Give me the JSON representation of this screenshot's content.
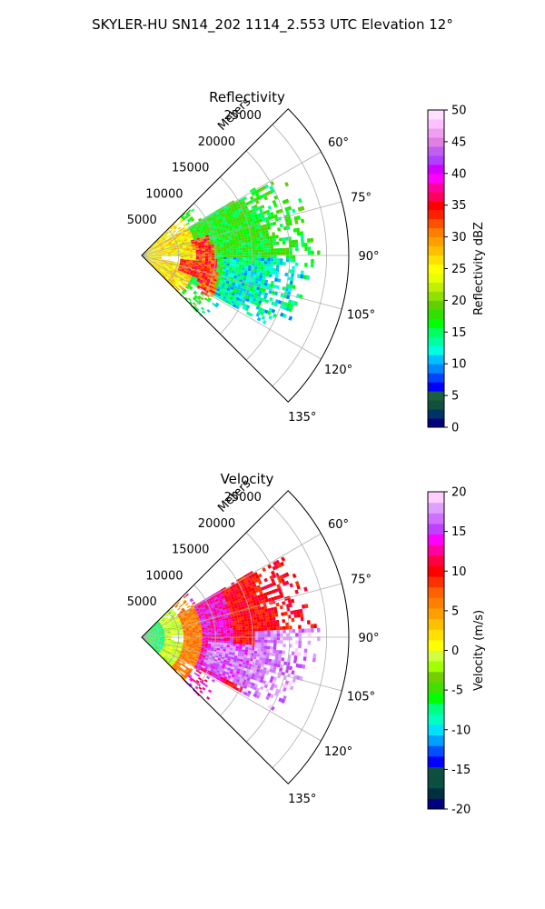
{
  "figure": {
    "title": "SKYLER-HU  SN14_202  1114_2.553 UTC Elevation 12°"
  },
  "chart_data": [
    {
      "type": "heatmap",
      "title": "Reflectivity",
      "radial_label": "Meters",
      "radial_ticks": [
        5000,
        10000,
        15000,
        20000,
        25000
      ],
      "radial_tick_labels": [
        "5000",
        "10000",
        "15000",
        "20000",
        "25000"
      ],
      "rlim": [
        0,
        28000
      ],
      "azimuth_ticks": [
        60,
        75,
        90,
        105,
        120,
        135
      ],
      "azimuth_tick_labels": [
        "60°",
        "75°",
        "90°",
        "105°",
        "120°",
        "135°"
      ],
      "azimuth_range": [
        45,
        135
      ],
      "grid": true,
      "colorbar": {
        "label": "Reflectivity dBZ",
        "range": [
          0,
          50
        ],
        "ticks": [
          0,
          5,
          10,
          15,
          20,
          25,
          30,
          35,
          40,
          45,
          50
        ],
        "tick_labels": [
          "0",
          "5",
          "10",
          "15",
          "20",
          "25",
          "30",
          "35",
          "40",
          "45",
          "50"
        ],
        "colormap": "NWSRef"
      }
    },
    {
      "type": "heatmap",
      "title": "Velocity",
      "radial_label": "Meters",
      "radial_ticks": [
        5000,
        10000,
        15000,
        20000,
        25000
      ],
      "radial_tick_labels": [
        "5000",
        "10000",
        "15000",
        "20000",
        "25000"
      ],
      "rlim": [
        0,
        28000
      ],
      "azimuth_ticks": [
        60,
        75,
        90,
        105,
        120,
        135
      ],
      "azimuth_tick_labels": [
        "60°",
        "75°",
        "90°",
        "105°",
        "120°",
        "135°"
      ],
      "azimuth_range": [
        45,
        135
      ],
      "grid": true,
      "colorbar": {
        "label": "Velocity (m/s)",
        "range": [
          -20,
          20
        ],
        "ticks": [
          -20,
          -15,
          -10,
          -5,
          0,
          5,
          10,
          15,
          20
        ],
        "tick_labels": [
          "-20",
          "-15",
          "-10",
          "-5",
          "0",
          "5",
          "10",
          "15",
          "20"
        ],
        "colormap": "NWSVel"
      }
    }
  ]
}
